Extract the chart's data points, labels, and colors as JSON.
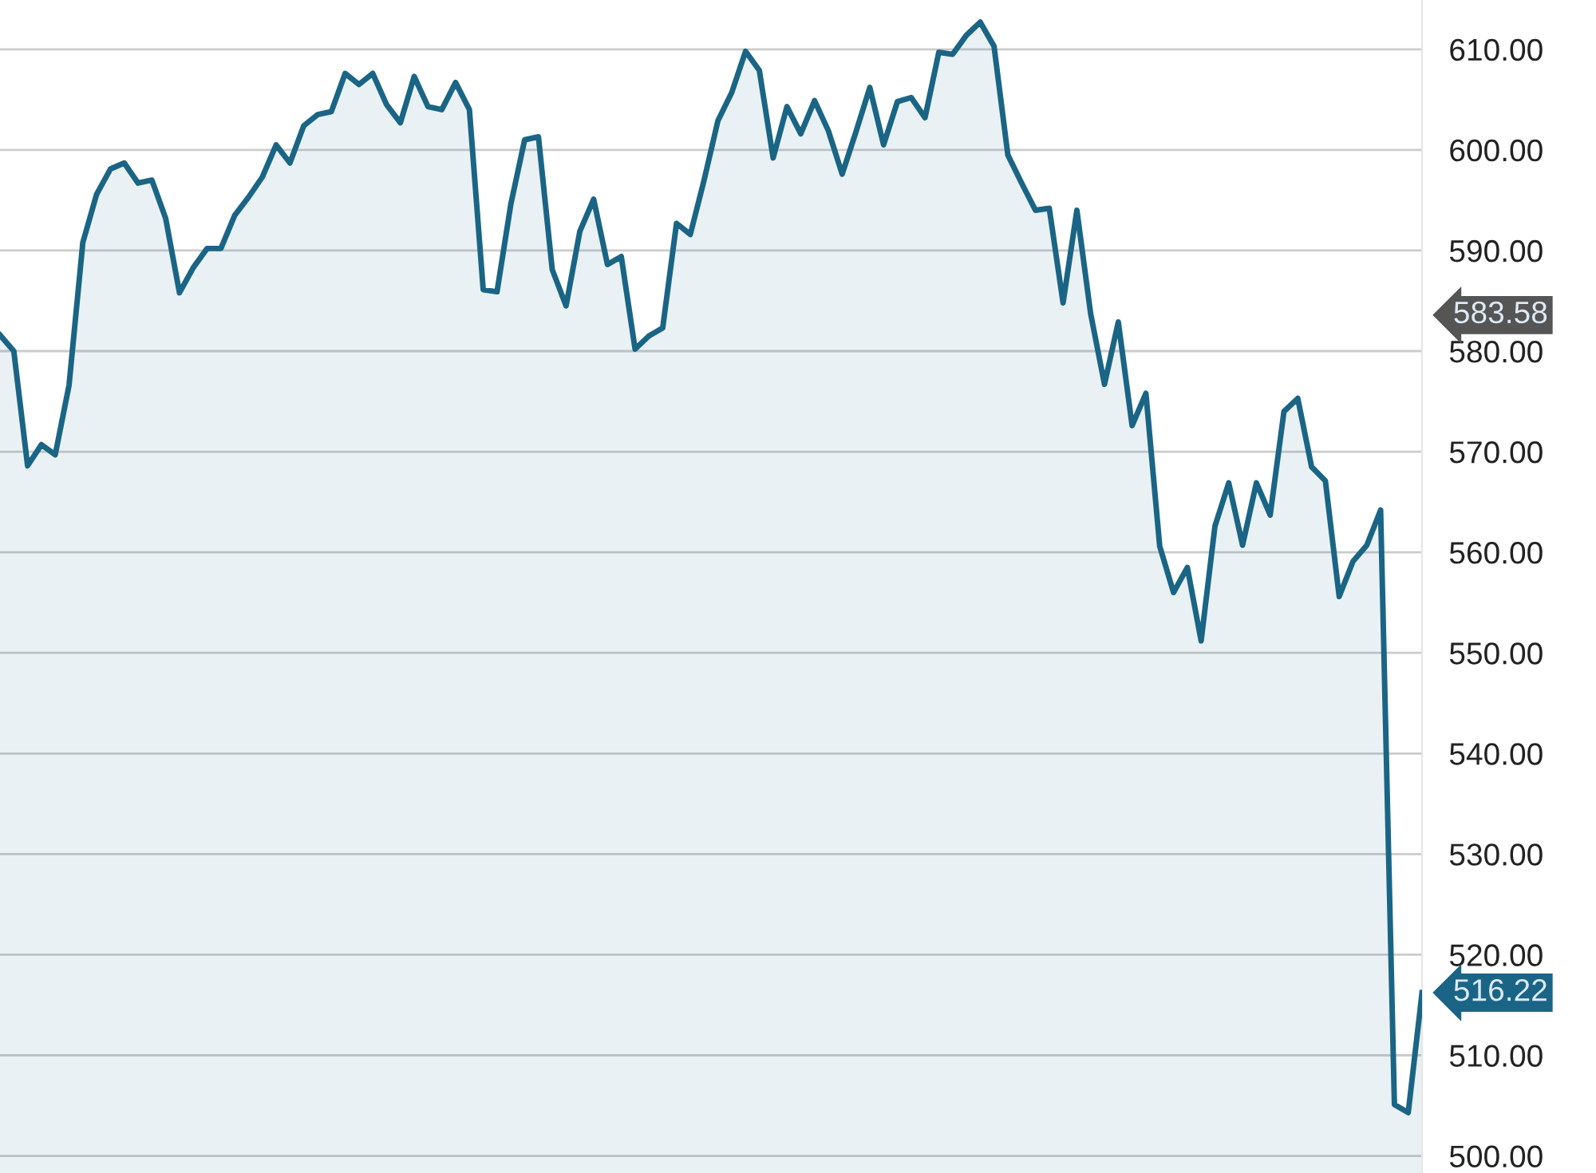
{
  "chart_data": {
    "type": "area",
    "categories": [
      null,
      null,
      null,
      null,
      null,
      null,
      null,
      null,
      null,
      null,
      null,
      null,
      null,
      null,
      null,
      null,
      null,
      null,
      null,
      null,
      null,
      null,
      null,
      null,
      null,
      null,
      null,
      null,
      null,
      null,
      null,
      null,
      null,
      null,
      null,
      null,
      null,
      null,
      null,
      null,
      null,
      null,
      null,
      null,
      null,
      null,
      null,
      null,
      null,
      null,
      null,
      null,
      null,
      null,
      null,
      null,
      null,
      null,
      null,
      null,
      null,
      null,
      null,
      null,
      null,
      null,
      null,
      null,
      null,
      null,
      null,
      null,
      null,
      null,
      null,
      null,
      null,
      null,
      null,
      null,
      null,
      null,
      null,
      null,
      null,
      null,
      null,
      null,
      null,
      null,
      null,
      null,
      null,
      null,
      null,
      null,
      null,
      null,
      null,
      null,
      null,
      null,
      null,
      null
    ],
    "series": [
      {
        "color": "#1a6585",
        "values": [
          581.6,
          580.0,
          568.6,
          570.7,
          569.7,
          576.6,
          590.8,
          595.6,
          598.1,
          598.7,
          596.7,
          597.0,
          593.2,
          585.8,
          588.3,
          590.2,
          590.2,
          593.5,
          595.3,
          597.3,
          600.5,
          598.7,
          602.4,
          603.5,
          603.8,
          607.6,
          606.5,
          607.6,
          604.5,
          602.7,
          607.3,
          604.3,
          604.0,
          606.7,
          604.0,
          586.1,
          585.9,
          594.6,
          601.0,
          601.3,
          588.1,
          584.5,
          591.9,
          595.1,
          588.6,
          589.4,
          580.2,
          581.5,
          582.3,
          592.7,
          591.6,
          597.0,
          602.9,
          605.7,
          609.8,
          607.9,
          599.2,
          604.3,
          601.6,
          604.9,
          601.9,
          597.6,
          601.8,
          606.2,
          600.5,
          604.8,
          605.2,
          603.2,
          609.7,
          609.5,
          611.4,
          612.7,
          610.3,
          599.5,
          596.7,
          594.0,
          594.2,
          584.8,
          594.0,
          583.7,
          576.7,
          582.9,
          572.6,
          575.8,
          560.6,
          556.0,
          558.5,
          551.2,
          562.6,
          566.9,
          560.7,
          566.9,
          563.7,
          574.0,
          575.3,
          568.5,
          567.1,
          555.6,
          559.1,
          560.7,
          564.2,
          505.1,
          504.3,
          516.22
        ]
      }
    ],
    "ylim": [
      498.3,
      614.9
    ],
    "yticks": [
      {
        "value": 500,
        "label": "500.00"
      },
      {
        "value": 510,
        "label": "510.00"
      },
      {
        "value": 520,
        "label": "520.00"
      },
      {
        "value": 530,
        "label": "530.00"
      },
      {
        "value": 540,
        "label": "540.00"
      },
      {
        "value": 550,
        "label": "550.00"
      },
      {
        "value": 560,
        "label": "560.00"
      },
      {
        "value": 570,
        "label": "570.00"
      },
      {
        "value": 580,
        "label": "580.00"
      },
      {
        "value": 590,
        "label": "590.00"
      },
      {
        "value": 600,
        "label": "600.00"
      },
      {
        "value": 610,
        "label": "610.00"
      }
    ],
    "grid": "y",
    "annotations": [
      "583.58",
      "516.22"
    ]
  }
}
